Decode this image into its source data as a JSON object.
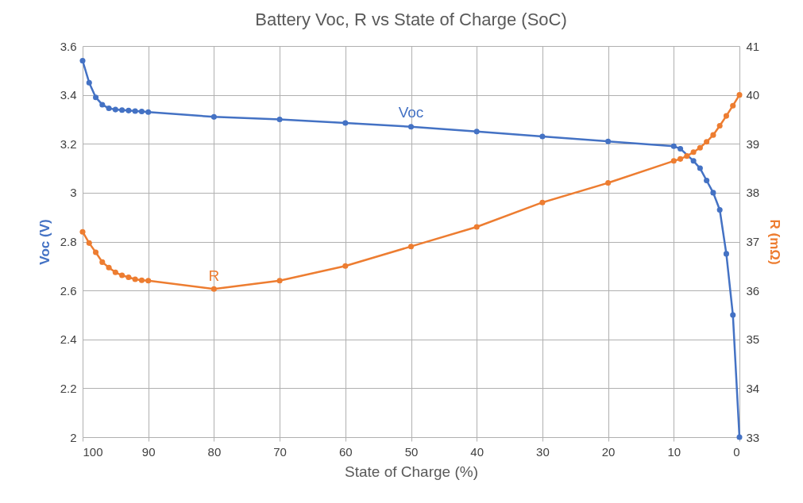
{
  "chart_data": {
    "type": "line",
    "title": "Battery Voc, R vs State of Charge (SoC)",
    "xlabel": "State of Charge (%)",
    "ylabel": "Voc (V)",
    "y2label": "R (mΩ)",
    "xlim": [
      100,
      0
    ],
    "xticks": [
      100,
      90,
      80,
      70,
      60,
      50,
      40,
      30,
      20,
      10,
      0
    ],
    "ylim": [
      2,
      3.6
    ],
    "yticks": [
      2,
      2.2,
      2.4,
      2.6,
      2.8,
      3,
      3.2,
      3.4,
      3.6
    ],
    "y2lim": [
      33,
      41
    ],
    "y2ticks": [
      33,
      34,
      35,
      36,
      37,
      38,
      39,
      40,
      41
    ],
    "grid": true,
    "marker": "circle",
    "line_style": "solid",
    "series": [
      {
        "name": "Voc",
        "color": "#4472c4",
        "x": [
          100,
          99,
          98,
          97,
          96,
          95,
          94,
          93,
          92,
          91,
          90,
          80,
          70,
          60,
          50,
          40,
          30,
          20,
          10,
          9,
          7,
          6,
          5,
          4,
          3,
          2,
          1,
          0
        ],
        "values": [
          3.54,
          3.45,
          3.39,
          3.36,
          3.345,
          3.34,
          3.338,
          3.336,
          3.334,
          3.332,
          3.33,
          3.31,
          3.3,
          3.285,
          3.27,
          3.25,
          3.23,
          3.21,
          3.19,
          3.18,
          3.13,
          3.1,
          3.05,
          3,
          2.93,
          2.75,
          2.5,
          2
        ]
      },
      {
        "name": "R",
        "color": "#ed7d31",
        "axis": "y2",
        "x": [
          100,
          99,
          98,
          97,
          96,
          95,
          94,
          93,
          92,
          91,
          90,
          80,
          70,
          60,
          50,
          40,
          30,
          20,
          10,
          9,
          8,
          7,
          6,
          5,
          4,
          3,
          2,
          1,
          0
        ],
        "values": [
          37.2,
          36.97,
          36.78,
          36.58,
          36.47,
          36.37,
          36.31,
          36.27,
          36.23,
          36.21,
          36.2,
          36.03,
          36.2,
          36.5,
          36.9,
          37.3,
          37.8,
          38.2,
          38.65,
          38.69,
          38.75,
          38.83,
          38.92,
          39.04,
          39.18,
          39.37,
          39.57,
          39.78,
          40
        ]
      }
    ]
  }
}
